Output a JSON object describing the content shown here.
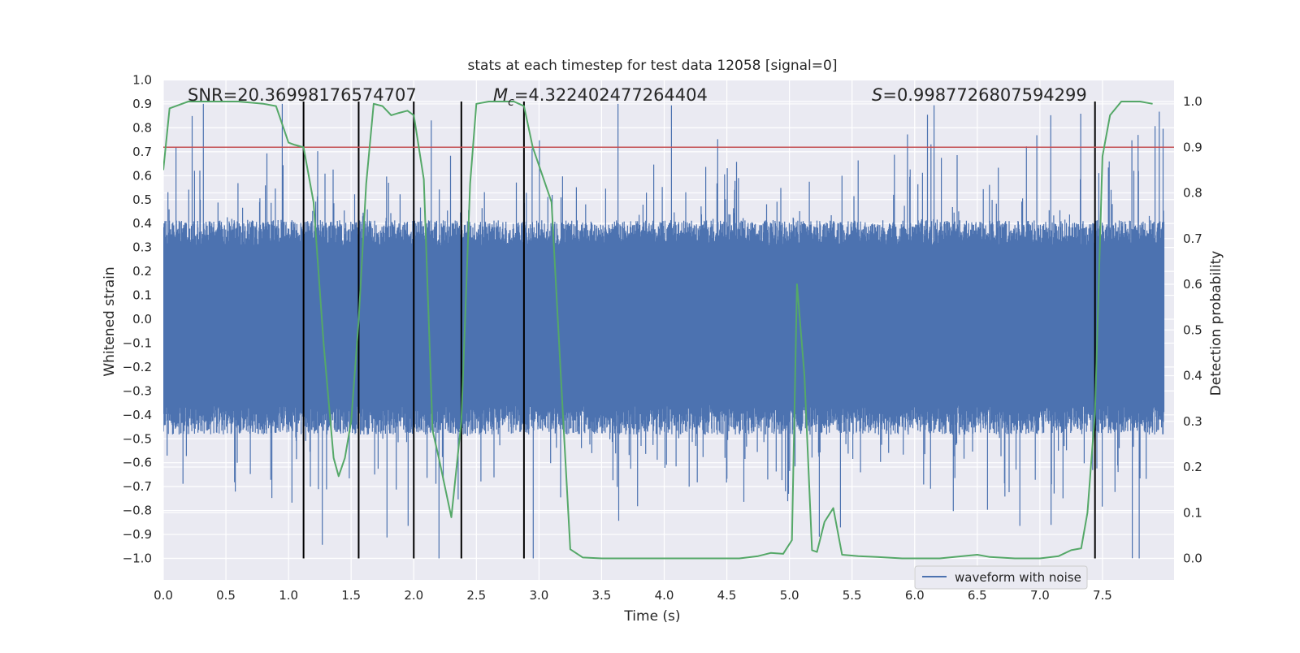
{
  "chart_data": {
    "type": "line",
    "title": "stats at each timestep for test data 12058 [signal=0]",
    "xlabel": "Time (s)",
    "ylabel_left": "Whitened strain",
    "ylabel_right": "Detection probability",
    "xlim": [
      0.0,
      8.0
    ],
    "ylim_left": [
      -1.0,
      1.0
    ],
    "ylim_right": [
      0.0,
      1.0
    ],
    "x_ticks": [
      "0.0",
      "0.5",
      "1.0",
      "1.5",
      "2.0",
      "2.5",
      "3.0",
      "3.5",
      "4.0",
      "4.5",
      "5.0",
      "5.5",
      "6.0",
      "6.5",
      "7.0",
      "7.5"
    ],
    "y_left_ticks": [
      "1.0",
      "0.9",
      "0.8",
      "0.7",
      "0.6",
      "0.5",
      "0.4",
      "0.3",
      "0.2",
      "0.1",
      "0.0",
      "−0.1",
      "−0.2",
      "−0.3",
      "−0.4",
      "−0.5",
      "−0.6",
      "−0.7",
      "−0.8",
      "−0.9",
      "−1.0"
    ],
    "y_right_ticks": [
      "1.0",
      "0.9",
      "0.8",
      "0.7",
      "0.6",
      "0.5",
      "0.4",
      "0.3",
      "0.2",
      "0.1",
      "0.0"
    ],
    "annotations": {
      "snr": "SNR=20.36998176574707",
      "mc_prefix": "M",
      "mc_sub": "c",
      "mc_value": "=4.322402477264404",
      "s_prefix": "S",
      "s_value": "=0.9987726807594299"
    },
    "legend": {
      "label": "waveform with noise",
      "placement": "lower-right"
    },
    "grid": true,
    "colors": {
      "background": "#eaeaf2",
      "grid": "#ffffff",
      "waveform": "#4c72b0",
      "probability": "#55a868",
      "threshold": "#c44e52",
      "event_marker": "#000000"
    },
    "threshold": 0.9,
    "event_markers_x": [
      1.12,
      1.56,
      2.0,
      2.38,
      2.88,
      7.44
    ],
    "waveform": {
      "description_units": "whitened strain",
      "typical_envelope": [
        -0.42,
        0.36
      ],
      "extremes": [
        -1.0,
        0.9
      ]
    },
    "series": [
      {
        "name": "waveform with noise",
        "kind": "strain"
      },
      {
        "kind": "probability",
        "x": [
          0.0,
          0.05,
          0.2,
          0.4,
          0.6,
          0.8,
          0.9,
          1.0,
          1.05,
          1.12,
          1.2,
          1.28,
          1.36,
          1.4,
          1.45,
          1.5,
          1.56,
          1.62,
          1.68,
          1.75,
          1.82,
          1.88,
          1.95,
          2.0,
          2.08,
          2.15,
          2.2,
          2.3,
          2.38,
          2.45,
          2.5,
          2.6,
          2.7,
          2.8,
          2.88,
          2.95,
          3.1,
          3.2,
          3.25,
          3.35,
          3.5,
          3.8,
          4.0,
          4.3,
          4.6,
          4.75,
          4.85,
          4.95,
          5.02,
          5.06,
          5.12,
          5.18,
          5.22,
          5.28,
          5.35,
          5.42,
          5.55,
          5.7,
          5.9,
          6.2,
          6.5,
          6.6,
          6.8,
          7.0,
          7.15,
          7.25,
          7.33,
          7.38,
          7.44,
          7.5,
          7.56,
          7.65,
          7.8,
          7.9
        ],
        "y": [
          0.85,
          0.985,
          1.0,
          1.0,
          1.0,
          0.995,
          0.99,
          0.91,
          0.905,
          0.9,
          0.78,
          0.47,
          0.22,
          0.18,
          0.22,
          0.3,
          0.52,
          0.82,
          0.995,
          0.99,
          0.97,
          0.975,
          0.98,
          0.97,
          0.83,
          0.28,
          0.22,
          0.09,
          0.3,
          0.82,
          0.995,
          1.0,
          1.0,
          1.0,
          0.99,
          0.9,
          0.78,
          0.27,
          0.02,
          0.002,
          0.0,
          0.0,
          0.0,
          0.0,
          0.0,
          0.005,
          0.012,
          0.01,
          0.04,
          0.6,
          0.4,
          0.018,
          0.014,
          0.08,
          0.11,
          0.008,
          0.005,
          0.003,
          0.0,
          0.0,
          0.008,
          0.003,
          0.0,
          0.0,
          0.005,
          0.018,
          0.022,
          0.1,
          0.32,
          0.88,
          0.97,
          1.0,
          1.0,
          0.995
        ]
      }
    ]
  }
}
